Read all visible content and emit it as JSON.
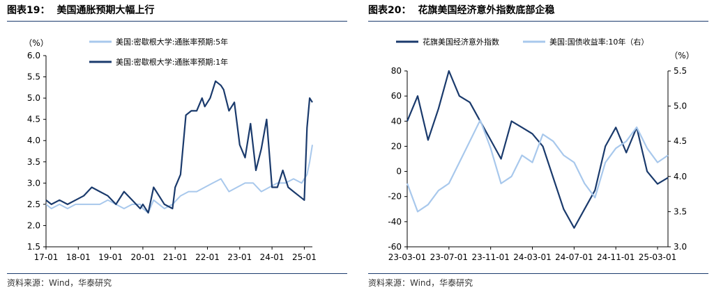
{
  "figures": [
    {
      "label": "图表19：",
      "title": "美国通胀预期大幅上行",
      "source": "资料来源：Wind，华泰研究"
    },
    {
      "label": "图表20：",
      "title": "花旗美国经济意外指数底部企稳",
      "source": "资料来源：Wind，华泰研究"
    }
  ],
  "chart_data": [
    {
      "type": "line",
      "unit_left": "（%）",
      "ylim": [
        1.5,
        6.0
      ],
      "yticks": [
        "6.0",
        "5.5",
        "5.0",
        "4.5",
        "4.0",
        "3.5",
        "3.0",
        "2.5",
        "2.0",
        "1.5"
      ],
      "x_range": [
        "2017-01",
        "2025-04"
      ],
      "xtick_labels": [
        "17-01",
        "18-01",
        "19-01",
        "20-01",
        "21-01",
        "22-01",
        "23-01",
        "24-01",
        "25-01"
      ],
      "grid": false,
      "legend_position": "top",
      "series": [
        {
          "name": "美国:密歇根大学:通胀率预期:5年",
          "color": "#a8c8ec",
          "x": [
            "2017-01",
            "2017-03",
            "2017-06",
            "2017-09",
            "2017-12",
            "2018-03",
            "2018-06",
            "2018-09",
            "2018-12",
            "2019-03",
            "2019-06",
            "2019-09",
            "2019-12",
            "2020-01",
            "2020-03",
            "2020-05",
            "2020-07",
            "2020-09",
            "2020-12",
            "2021-03",
            "2021-06",
            "2021-09",
            "2021-12",
            "2022-03",
            "2022-06",
            "2022-09",
            "2022-12",
            "2023-03",
            "2023-06",
            "2023-09",
            "2023-12",
            "2024-03",
            "2024-06",
            "2024-09",
            "2024-12",
            "2025-01",
            "2025-02",
            "2025-03",
            "2025-04"
          ],
          "values": [
            2.5,
            2.4,
            2.5,
            2.4,
            2.5,
            2.5,
            2.5,
            2.5,
            2.6,
            2.5,
            2.4,
            2.5,
            2.5,
            2.4,
            2.3,
            2.6,
            2.5,
            2.4,
            2.5,
            2.7,
            2.8,
            2.8,
            2.9,
            3.0,
            3.1,
            2.8,
            2.9,
            3.0,
            3.0,
            2.8,
            2.9,
            3.0,
            3.0,
            3.1,
            3.0,
            3.1,
            3.2,
            3.5,
            3.9
          ]
        },
        {
          "name": "美国:密歇根大学:通胀率预期:1年",
          "color": "#1a3a6c",
          "x": [
            "2017-01",
            "2017-03",
            "2017-06",
            "2017-09",
            "2017-12",
            "2018-03",
            "2018-06",
            "2018-09",
            "2018-12",
            "2019-03",
            "2019-06",
            "2019-09",
            "2019-12",
            "2020-01",
            "2020-03",
            "2020-05",
            "2020-07",
            "2020-09",
            "2020-12",
            "2021-01",
            "2021-03",
            "2021-05",
            "2021-07",
            "2021-09",
            "2021-11",
            "2021-12",
            "2022-02",
            "2022-04",
            "2022-06",
            "2022-07",
            "2022-09",
            "2022-11",
            "2023-01",
            "2023-03",
            "2023-05",
            "2023-07",
            "2023-09",
            "2023-11",
            "2024-01",
            "2024-03",
            "2024-05",
            "2024-07",
            "2024-09",
            "2024-11",
            "2025-01",
            "2025-02",
            "2025-03",
            "2025-04"
          ],
          "values": [
            2.6,
            2.5,
            2.6,
            2.5,
            2.6,
            2.7,
            2.9,
            2.8,
            2.7,
            2.5,
            2.8,
            2.6,
            2.4,
            2.5,
            2.3,
            2.9,
            2.7,
            2.5,
            2.4,
            2.9,
            3.2,
            4.6,
            4.7,
            4.7,
            5.0,
            4.8,
            5.0,
            5.4,
            5.3,
            5.2,
            4.7,
            4.9,
            3.9,
            3.6,
            4.4,
            3.3,
            3.8,
            4.5,
            2.9,
            2.9,
            3.3,
            2.9,
            2.8,
            2.7,
            2.6,
            4.3,
            5.0,
            4.9
          ]
        }
      ]
    },
    {
      "type": "line",
      "unit_right": "（%）",
      "ylim_left": [
        -60,
        80
      ],
      "yticks_left": [
        "80",
        "60",
        "40",
        "20",
        "0",
        "-20",
        "-40",
        "-60"
      ],
      "ylim_right": [
        3.0,
        5.5
      ],
      "yticks_right": [
        "5.5",
        "5.0",
        "4.5",
        "4.0",
        "3.5",
        "3.0"
      ],
      "x_range": [
        "2023-03",
        "2025-04"
      ],
      "xtick_labels": [
        "23-03-01",
        "23-07-01",
        "23-11-01",
        "24-03-01",
        "24-07-01",
        "24-11-01",
        "25-03-01"
      ],
      "grid": false,
      "legend_position": "top",
      "series": [
        {
          "name": "花旗美国经济意外指数",
          "axis": "left",
          "color": "#1a3a6c",
          "x": [
            "2023-03",
            "2023-04",
            "2023-05",
            "2023-06",
            "2023-07",
            "2023-08",
            "2023-09",
            "2023-10",
            "2023-11",
            "2023-12",
            "2024-01",
            "2024-02",
            "2024-03",
            "2024-04",
            "2024-05",
            "2024-06",
            "2024-07",
            "2024-08",
            "2024-09",
            "2024-10",
            "2024-11",
            "2024-12",
            "2025-01",
            "2025-02",
            "2025-03",
            "2025-04"
          ],
          "values": [
            40,
            60,
            25,
            50,
            80,
            60,
            55,
            40,
            25,
            10,
            40,
            35,
            30,
            20,
            -5,
            -30,
            -45,
            -30,
            -15,
            20,
            35,
            15,
            35,
            0,
            -10,
            -5
          ]
        },
        {
          "name": "美国:国债收益率:10年（右）",
          "axis": "right",
          "color": "#a8c8ec",
          "x": [
            "2023-03",
            "2023-04",
            "2023-05",
            "2023-06",
            "2023-07",
            "2023-08",
            "2023-09",
            "2023-10",
            "2023-11",
            "2023-12",
            "2024-01",
            "2024-02",
            "2024-03",
            "2024-04",
            "2024-05",
            "2024-06",
            "2024-07",
            "2024-08",
            "2024-09",
            "2024-10",
            "2024-11",
            "2024-12",
            "2025-01",
            "2025-02",
            "2025-03",
            "2025-04"
          ],
          "values": [
            3.9,
            3.5,
            3.6,
            3.8,
            3.9,
            4.2,
            4.5,
            4.8,
            4.4,
            3.9,
            4.0,
            4.3,
            4.2,
            4.6,
            4.5,
            4.3,
            4.2,
            3.9,
            3.7,
            4.2,
            4.4,
            4.5,
            4.7,
            4.4,
            4.2,
            4.3
          ]
        }
      ]
    }
  ]
}
